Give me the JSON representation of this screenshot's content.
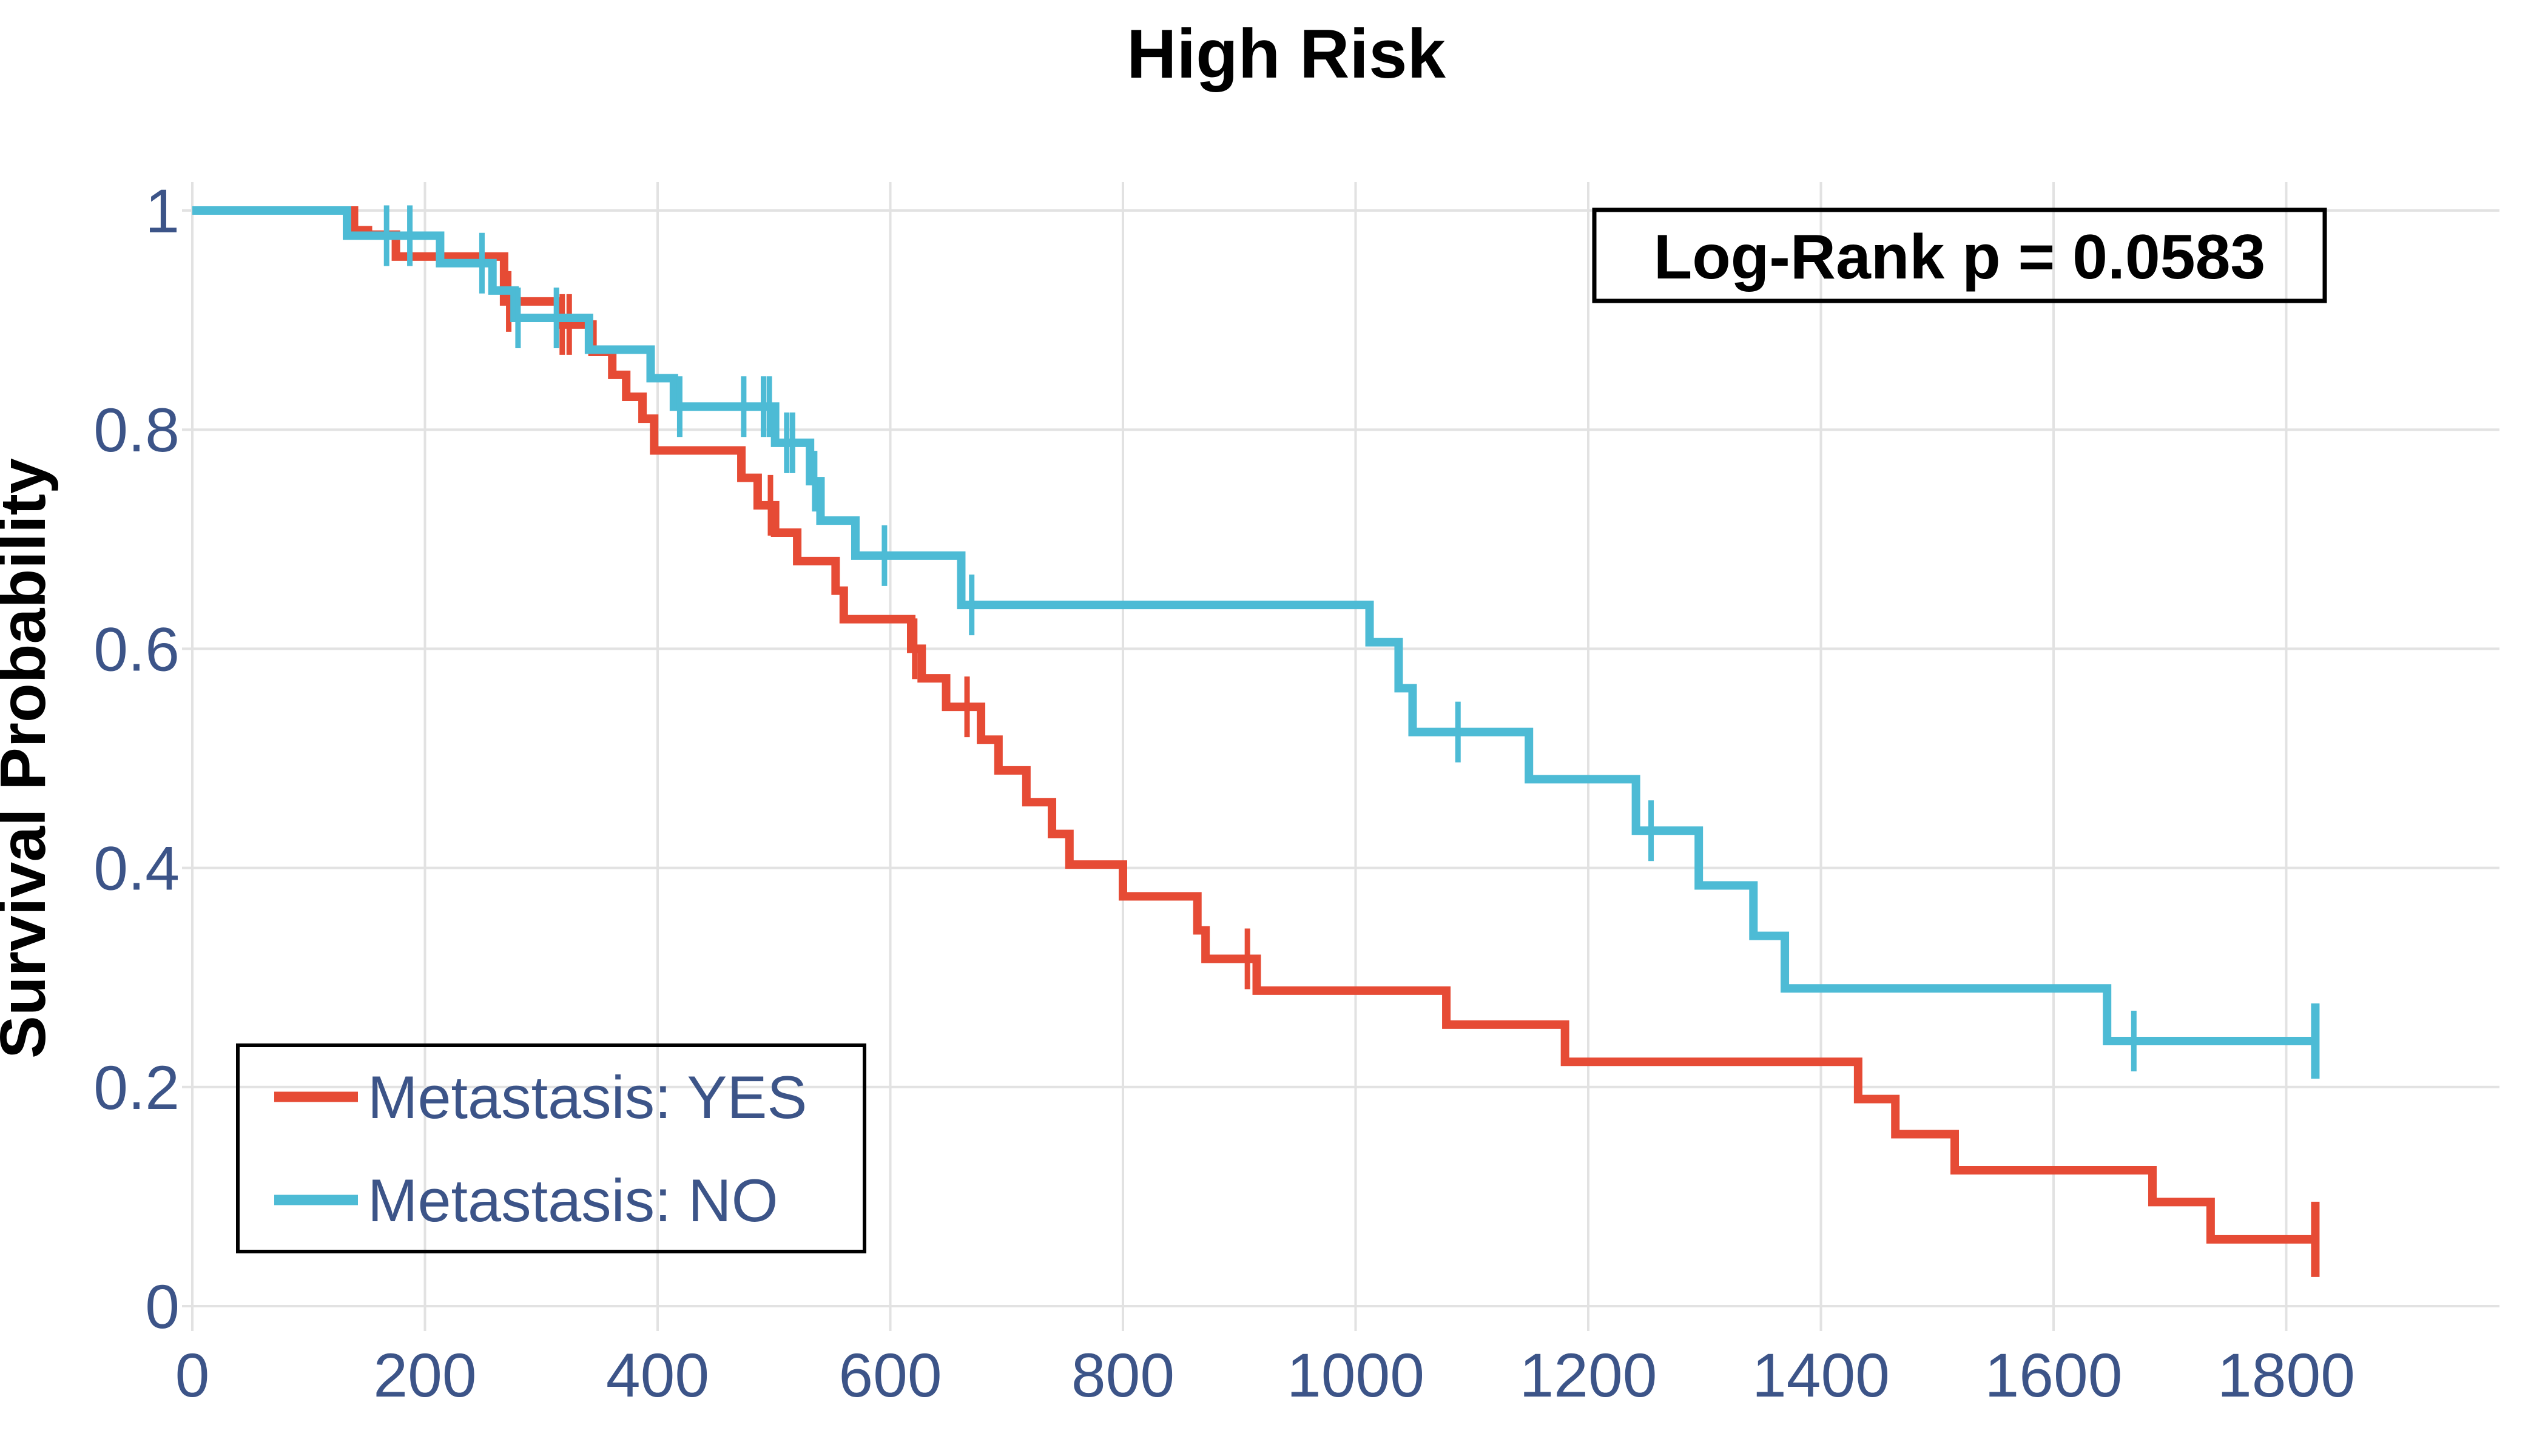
{
  "chart_data": {
    "type": "line",
    "subtype": "kaplan_meier_step",
    "title": "High Risk",
    "xlabel": "",
    "ylabel": "Survival Probability",
    "xlim": [
      0,
      1980
    ],
    "ylim": [
      0,
      1.02
    ],
    "x_ticks": [
      0,
      200,
      400,
      600,
      800,
      1000,
      1200,
      1400,
      1600,
      1800
    ],
    "x_tick_labels": [
      "0",
      "200",
      "400",
      "600",
      "800",
      "1000",
      "1200",
      "1400",
      "1600",
      "1800"
    ],
    "y_ticks": [
      0,
      0.2,
      0.4,
      0.6,
      0.8,
      1
    ],
    "y_tick_labels": [
      "0",
      "0.2",
      "0.4",
      "0.6",
      "0.8",
      "1"
    ],
    "grid": true,
    "legend_position": "bottom-left",
    "annotation": {
      "text": "Log-Rank p = 0.0583",
      "position": "top-right"
    },
    "series": [
      {
        "name": "Metastasis: YES",
        "color": "#E64B35",
        "start": [
          0,
          1.0
        ],
        "end_time": 1825,
        "steps": [
          [
            139,
            0.982
          ],
          [
            151,
            0.978
          ],
          [
            175,
            0.958
          ],
          [
            268,
            0.917
          ],
          [
            316,
            0.896
          ],
          [
            344,
            0.871
          ],
          [
            361,
            0.85
          ],
          [
            373,
            0.83
          ],
          [
            387,
            0.81
          ],
          [
            397,
            0.781
          ],
          [
            472,
            0.756
          ],
          [
            486,
            0.731
          ],
          [
            501,
            0.706
          ],
          [
            520,
            0.68
          ],
          [
            553,
            0.653
          ],
          [
            560,
            0.627
          ],
          [
            618,
            0.6
          ],
          [
            627,
            0.573
          ],
          [
            648,
            0.547
          ],
          [
            678,
            0.517
          ],
          [
            693,
            0.489
          ],
          [
            717,
            0.46
          ],
          [
            739,
            0.431
          ],
          [
            754,
            0.403
          ],
          [
            800,
            0.374
          ],
          [
            864,
            0.343
          ],
          [
            871,
            0.317
          ],
          [
            915,
            0.288
          ],
          [
            1078,
            0.257
          ],
          [
            1180,
            0.223
          ],
          [
            1432,
            0.189
          ],
          [
            1464,
            0.157
          ],
          [
            1515,
            0.124
          ],
          [
            1685,
            0.095
          ],
          [
            1735,
            0.061
          ]
        ],
        "censor_marks": [
          [
            272,
            0.917
          ],
          [
            318,
            0.896
          ],
          [
            324,
            0.896
          ],
          [
            497,
            0.731
          ],
          [
            621,
            0.6
          ],
          [
            666,
            0.547
          ],
          [
            907,
            0.317
          ]
        ],
        "terminal_censor": [
          1825,
          0.061
        ]
      },
      {
        "name": "Metastasis: NO",
        "color": "#4DBBD5",
        "start": [
          0,
          1.0
        ],
        "end_time": 1825,
        "steps": [
          [
            133,
            0.977
          ],
          [
            213,
            0.952
          ],
          [
            258,
            0.927
          ],
          [
            277,
            0.902
          ],
          [
            341,
            0.873
          ],
          [
            394,
            0.847
          ],
          [
            414,
            0.821
          ],
          [
            501,
            0.788
          ],
          [
            531,
            0.753
          ],
          [
            540,
            0.717
          ],
          [
            570,
            0.685
          ],
          [
            661,
            0.64
          ],
          [
            1012,
            0.606
          ],
          [
            1037,
            0.564
          ],
          [
            1049,
            0.524
          ],
          [
            1149,
            0.481
          ],
          [
            1241,
            0.434
          ],
          [
            1295,
            0.384
          ],
          [
            1342,
            0.338
          ],
          [
            1369,
            0.29
          ],
          [
            1646,
            0.242
          ]
        ],
        "censor_marks": [
          [
            167,
            0.977
          ],
          [
            187,
            0.977
          ],
          [
            249,
            0.952
          ],
          [
            280,
            0.902
          ],
          [
            313,
            0.902
          ],
          [
            419,
            0.821
          ],
          [
            474,
            0.821
          ],
          [
            491,
            0.821
          ],
          [
            496,
            0.821
          ],
          [
            511,
            0.788
          ],
          [
            516,
            0.788
          ],
          [
            535,
            0.753
          ],
          [
            595,
            0.685
          ],
          [
            670,
            0.64
          ],
          [
            1088,
            0.524
          ],
          [
            1254,
            0.434
          ],
          [
            1669,
            0.242
          ]
        ],
        "terminal_censor": [
          1825,
          0.242
        ]
      }
    ]
  },
  "style": {
    "title_color": "#000000",
    "axis_title_color": "#000000",
    "tick_label_color": "#3C5488",
    "grid_color": "#E2E2E2",
    "legend_text_color": "#3C5488",
    "legend_border_color": "#000000",
    "annotation_text_color": "#000000",
    "annotation_border_color": "#000000",
    "background_color": "#FFFFFF"
  }
}
